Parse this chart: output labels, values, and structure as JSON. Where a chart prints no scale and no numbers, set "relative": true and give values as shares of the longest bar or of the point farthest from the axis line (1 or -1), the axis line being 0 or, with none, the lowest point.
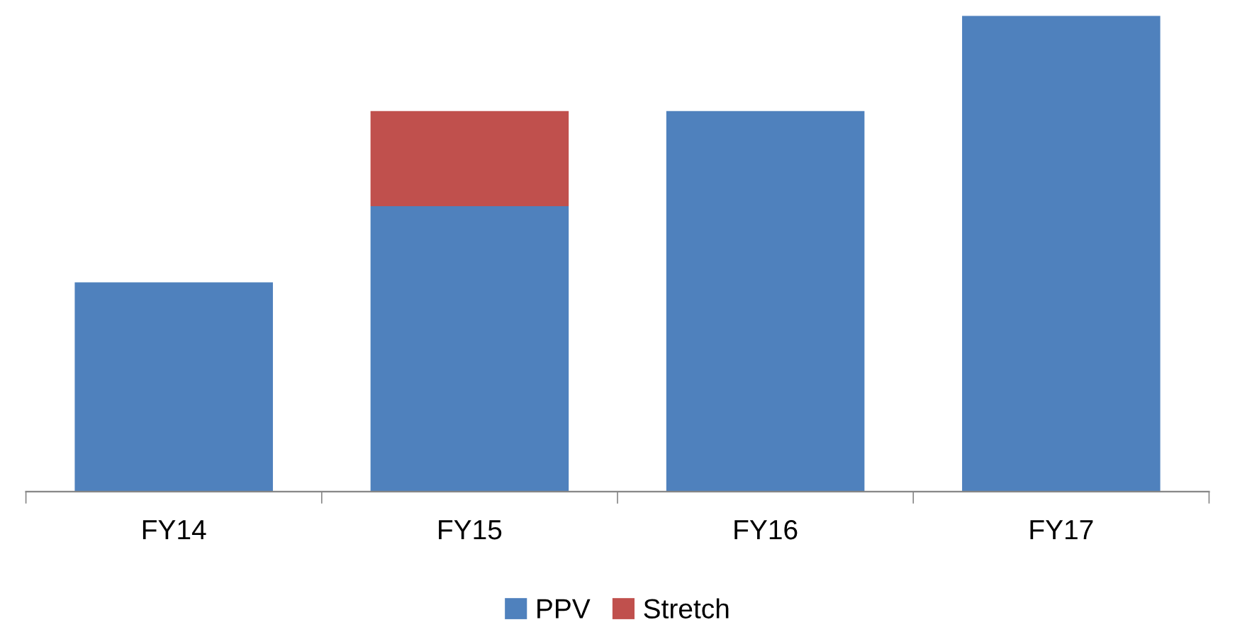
{
  "chart_data": {
    "type": "bar",
    "stacked": true,
    "relative": true,
    "categories": [
      "FY14",
      "FY15",
      "FY16",
      "FY17"
    ],
    "series": [
      {
        "name": "PPV",
        "color": "#4f81bd",
        "values": [
          0.44,
          0.6,
          0.8,
          1
        ]
      },
      {
        "name": "Stretch",
        "color": "#c0504d",
        "values": [
          null,
          0.2,
          null,
          null
        ]
      }
    ],
    "legend": "bottom",
    "grid": false
  }
}
